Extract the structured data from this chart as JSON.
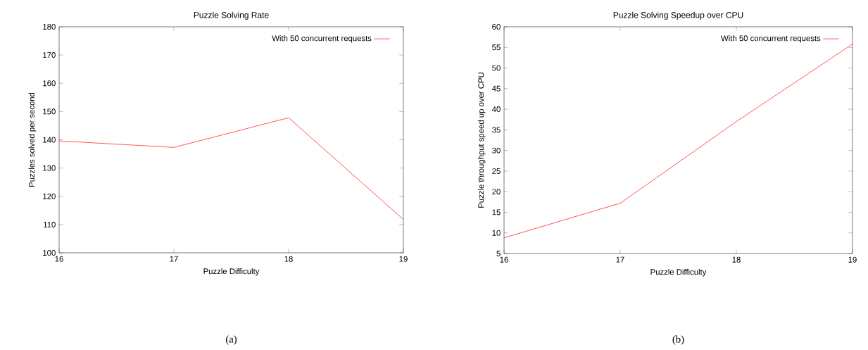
{
  "chart_data": [
    {
      "type": "line",
      "title": "Puzzle Solving Rate",
      "xlabel": "Puzzle Difficulty",
      "ylabel": "Puzzles solved per second",
      "x": [
        16,
        17,
        18,
        19
      ],
      "xlim": [
        16,
        19
      ],
      "xticks": [
        16,
        17,
        18,
        19
      ],
      "ylim": [
        100,
        180
      ],
      "yticks": [
        100,
        110,
        120,
        130,
        140,
        150,
        160,
        170,
        180
      ],
      "legend": "top right",
      "annotations": [
        "(a)"
      ],
      "series": [
        {
          "name": "With 50 concurrent requests",
          "color": "#ff0000",
          "values": [
            139.6,
            137.3,
            147.8,
            111.8
          ]
        }
      ]
    },
    {
      "type": "line",
      "title": "Puzzle Solving Speedup over CPU",
      "xlabel": "Puzzle Difficulty",
      "ylabel": "Puzzle throughput speed up over CPU",
      "x": [
        16,
        17,
        18,
        19
      ],
      "xlim": [
        16,
        19
      ],
      "xticks": [
        16,
        17,
        18,
        19
      ],
      "ylim": [
        5,
        60
      ],
      "yticks": [
        5,
        10,
        15,
        20,
        25,
        30,
        35,
        40,
        45,
        50,
        55,
        60
      ],
      "legend": "top right",
      "annotations": [
        "(b)"
      ],
      "series": [
        {
          "name": "With 50 concurrent requests",
          "color": "#ff0000",
          "values": [
            8.8,
            17.2,
            37,
            55.8
          ]
        }
      ]
    }
  ]
}
